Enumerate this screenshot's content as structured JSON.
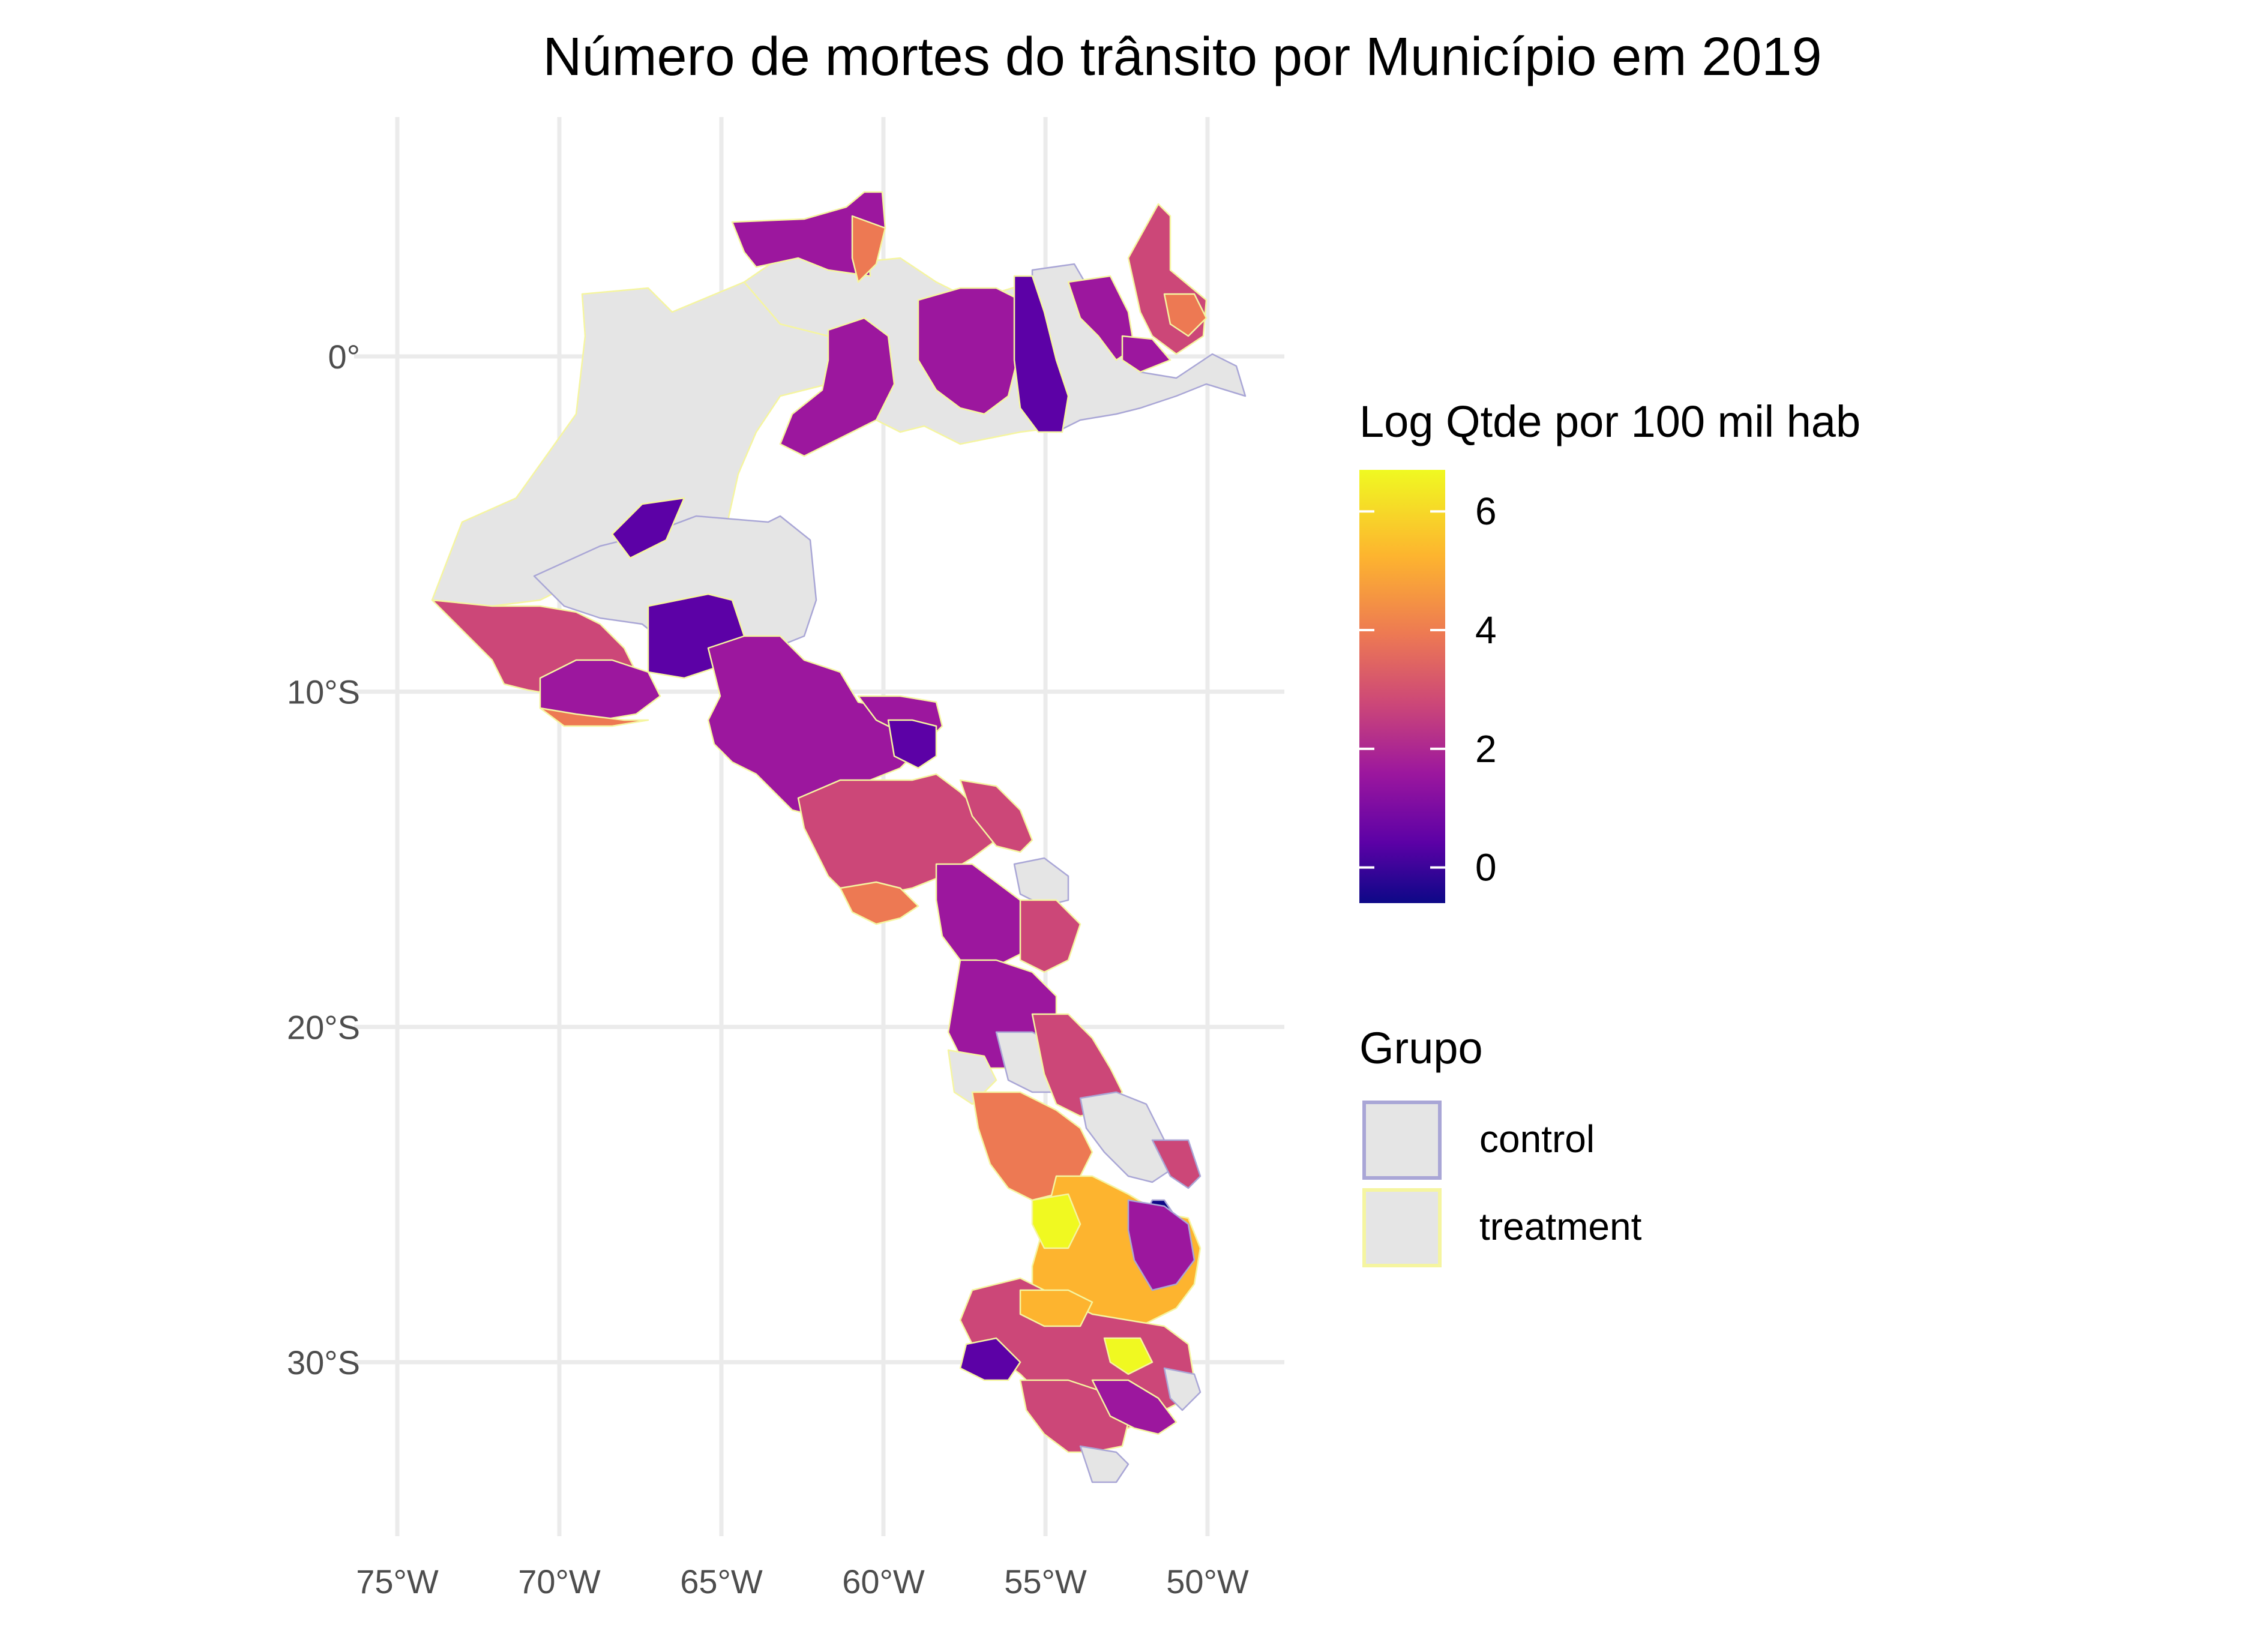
{
  "title": "Número de mortes do trânsito por Município em 2019",
  "chart_data": {
    "type": "choropleth",
    "title": "Número de mortes do trânsito por Município em 2019",
    "x_axis": {
      "ticks": [
        -75,
        -70,
        -65,
        -60,
        -55,
        -50
      ],
      "tick_labels": [
        "75°W",
        "70°W",
        "65°W",
        "60°W",
        "55°W",
        "50°W"
      ],
      "range": [
        -75,
        -48.7
      ]
    },
    "y_axis": {
      "ticks": [
        0,
        -10,
        -20,
        -30
      ],
      "tick_labels": [
        "0°",
        "10°S",
        "20°S",
        "30°S"
      ],
      "range": [
        -35,
        7
      ]
    },
    "grid": true,
    "fill_legend": {
      "title": "Log Qtde por 100 mil hab",
      "colorscale": "plasma",
      "range": [
        -0.6,
        6.7
      ],
      "ticks": [
        0,
        2,
        4,
        6
      ],
      "tick_labels": [
        "0",
        "2",
        "4",
        "6"
      ]
    },
    "group_legend": {
      "title": "Grupo",
      "items": [
        {
          "label": "control",
          "border_color": "#a9a6d6",
          "fill": "#e5e5e5"
        },
        {
          "label": "treatment",
          "border_color": "#f5f5a0",
          "fill": "#e5e5e5"
        }
      ]
    },
    "no_data_fill": "#e5e5e5",
    "colors": {
      "plasma_0": "#0d0887",
      "plasma_1": "#5c01a6",
      "plasma_2": "#9c179e",
      "plasma_3": "#cc4778",
      "plasma_4": "#ed7953",
      "plasma_5": "#fdb42f",
      "plasma_6": "#f0f921"
    }
  }
}
